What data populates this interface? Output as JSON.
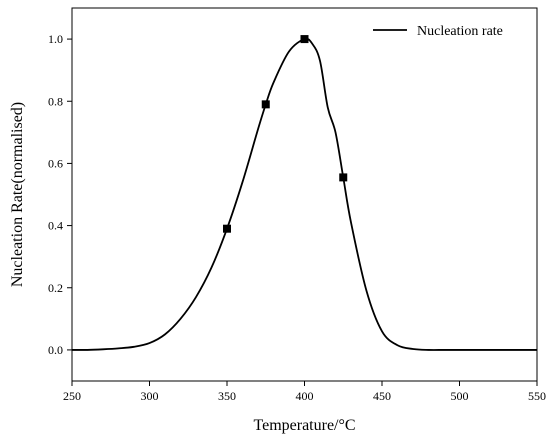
{
  "chart_data": {
    "type": "line",
    "xlabel": "Temperature/°C",
    "ylabel": "Nucleation Rate(normalised)",
    "xlim": [
      250,
      550
    ],
    "ylim": [
      -0.1,
      1.1
    ],
    "x_ticks": [
      250,
      300,
      350,
      400,
      450,
      500,
      550
    ],
    "y_ticks": [
      0.0,
      0.2,
      0.4,
      0.6,
      0.8,
      1.0
    ],
    "x_tick_labels": [
      "250",
      "300",
      "350",
      "400",
      "450",
      "500",
      "550"
    ],
    "y_tick_labels": [
      "0.0",
      "0.2",
      "0.4",
      "0.6",
      "0.8",
      "1.0"
    ],
    "grid": false,
    "legend_position": "top-right",
    "series": [
      {
        "name": "Nucleation rate",
        "color": "#000000",
        "marker": "square",
        "x": [
          250,
          260,
          270,
          280,
          290,
          300,
          310,
          320,
          330,
          340,
          350,
          360,
          370,
          375,
          380,
          390,
          400,
          405,
          410,
          415,
          420,
          425,
          430,
          440,
          450,
          460,
          470,
          480,
          490,
          500,
          510,
          520,
          530,
          540,
          550
        ],
        "y": [
          0.0,
          0.0,
          0.002,
          0.005,
          0.01,
          0.022,
          0.05,
          0.1,
          0.17,
          0.265,
          0.39,
          0.54,
          0.71,
          0.79,
          0.86,
          0.96,
          1.0,
          0.985,
          0.93,
          0.78,
          0.7,
          0.555,
          0.41,
          0.19,
          0.06,
          0.015,
          0.003,
          0.0,
          0.0,
          0.0,
          0.0,
          0.0,
          0.0,
          0.0,
          0.0
        ],
        "markers_x": [
          350,
          375,
          400,
          425
        ],
        "markers_y": [
          0.39,
          0.79,
          1.0,
          0.555
        ]
      }
    ]
  }
}
